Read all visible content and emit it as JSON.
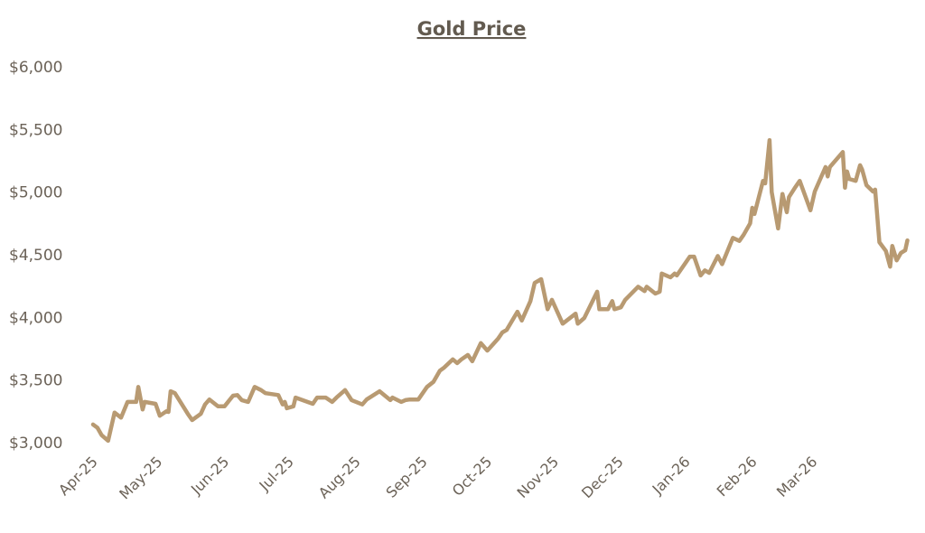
{
  "chart_data": {
    "type": "line",
    "title": "Gold Price",
    "xlabel": "",
    "ylabel": "",
    "ylim": [
      3000,
      6000
    ],
    "grid": false,
    "legend": "none",
    "line_color": "#b89a72",
    "text_color": "#6b6257",
    "y_ticks": [
      {
        "value": 3000,
        "label": "$3,000"
      },
      {
        "value": 3500,
        "label": "$3,500"
      },
      {
        "value": 4000,
        "label": "$4,000"
      },
      {
        "value": 4500,
        "label": "$4,500"
      },
      {
        "value": 5000,
        "label": "$5,000"
      },
      {
        "value": 5500,
        "label": "$5,500"
      },
      {
        "value": 6000,
        "label": "$6,000"
      }
    ],
    "x_ticks": [
      {
        "date": "2025-04-01",
        "label": "Apr-25"
      },
      {
        "date": "2025-05-01",
        "label": "May-25"
      },
      {
        "date": "2025-06-01",
        "label": "Jun-25"
      },
      {
        "date": "2025-07-01",
        "label": "Jul-25"
      },
      {
        "date": "2025-08-01",
        "label": "Aug-25"
      },
      {
        "date": "2025-09-01",
        "label": "Sep-25"
      },
      {
        "date": "2025-10-01",
        "label": "Oct-25"
      },
      {
        "date": "2025-11-01",
        "label": "Nov-25"
      },
      {
        "date": "2025-12-01",
        "label": "Dec-25"
      },
      {
        "date": "2026-01-01",
        "label": "Jan-26"
      },
      {
        "date": "2026-02-01",
        "label": "Feb-26"
      },
      {
        "date": "2026-03-01",
        "label": "Mar-26"
      }
    ],
    "series": [
      {
        "points": [
          [
            "2025-04-01",
            3145
          ],
          [
            "2025-04-03",
            3120
          ],
          [
            "2025-04-05",
            3060
          ],
          [
            "2025-04-08",
            3015
          ],
          [
            "2025-04-11",
            3240
          ],
          [
            "2025-04-14",
            3200
          ],
          [
            "2025-04-17",
            3325
          ],
          [
            "2025-04-21",
            3325
          ],
          [
            "2025-04-22",
            3445
          ],
          [
            "2025-04-24",
            3265
          ],
          [
            "2025-04-25",
            3325
          ],
          [
            "2025-04-30",
            3310
          ],
          [
            "2025-05-02",
            3215
          ],
          [
            "2025-05-05",
            3250
          ],
          [
            "2025-05-06",
            3245
          ],
          [
            "2025-05-07",
            3410
          ],
          [
            "2025-05-09",
            3395
          ],
          [
            "2025-05-15",
            3230
          ],
          [
            "2025-05-17",
            3180
          ],
          [
            "2025-05-21",
            3230
          ],
          [
            "2025-05-23",
            3305
          ],
          [
            "2025-05-25",
            3345
          ],
          [
            "2025-05-29",
            3290
          ],
          [
            "2025-06-01",
            3290
          ],
          [
            "2025-06-05",
            3375
          ],
          [
            "2025-06-07",
            3380
          ],
          [
            "2025-06-09",
            3340
          ],
          [
            "2025-06-12",
            3325
          ],
          [
            "2025-06-15",
            3445
          ],
          [
            "2025-06-18",
            3420
          ],
          [
            "2025-06-20",
            3395
          ],
          [
            "2025-06-26",
            3380
          ],
          [
            "2025-06-28",
            3305
          ],
          [
            "2025-06-29",
            3325
          ],
          [
            "2025-06-30",
            3275
          ],
          [
            "2025-07-03",
            3290
          ],
          [
            "2025-07-04",
            3360
          ],
          [
            "2025-07-12",
            3310
          ],
          [
            "2025-07-14",
            3360
          ],
          [
            "2025-07-18",
            3360
          ],
          [
            "2025-07-21",
            3325
          ],
          [
            "2025-07-23",
            3360
          ],
          [
            "2025-07-27",
            3420
          ],
          [
            "2025-07-30",
            3340
          ],
          [
            "2025-08-04",
            3305
          ],
          [
            "2025-08-06",
            3345
          ],
          [
            "2025-08-12",
            3410
          ],
          [
            "2025-08-17",
            3340
          ],
          [
            "2025-08-18",
            3360
          ],
          [
            "2025-08-22",
            3325
          ],
          [
            "2025-08-24",
            3340
          ],
          [
            "2025-08-26",
            3345
          ],
          [
            "2025-08-30",
            3345
          ],
          [
            "2025-09-03",
            3445
          ],
          [
            "2025-09-06",
            3485
          ],
          [
            "2025-09-09",
            3575
          ],
          [
            "2025-09-11",
            3600
          ],
          [
            "2025-09-15",
            3665
          ],
          [
            "2025-09-17",
            3635
          ],
          [
            "2025-09-19",
            3665
          ],
          [
            "2025-09-22",
            3700
          ],
          [
            "2025-09-24",
            3650
          ],
          [
            "2025-09-28",
            3795
          ],
          [
            "2025-10-01",
            3735
          ],
          [
            "2025-10-06",
            3830
          ],
          [
            "2025-10-08",
            3880
          ],
          [
            "2025-10-10",
            3900
          ],
          [
            "2025-10-15",
            4045
          ],
          [
            "2025-10-17",
            3975
          ],
          [
            "2025-10-21",
            4130
          ],
          [
            "2025-10-23",
            4275
          ],
          [
            "2025-10-26",
            4305
          ],
          [
            "2025-10-29",
            4065
          ],
          [
            "2025-10-31",
            4140
          ],
          [
            "2025-11-05",
            3950
          ],
          [
            "2025-11-11",
            4030
          ],
          [
            "2025-11-12",
            3950
          ],
          [
            "2025-11-15",
            3995
          ],
          [
            "2025-11-21",
            4205
          ],
          [
            "2025-11-22",
            4065
          ],
          [
            "2025-11-26",
            4065
          ],
          [
            "2025-11-28",
            4130
          ],
          [
            "2025-11-29",
            4065
          ],
          [
            "2025-12-02",
            4080
          ],
          [
            "2025-12-04",
            4140
          ],
          [
            "2025-12-10",
            4245
          ],
          [
            "2025-12-13",
            4210
          ],
          [
            "2025-12-14",
            4245
          ],
          [
            "2025-12-18",
            4190
          ],
          [
            "2025-12-20",
            4205
          ],
          [
            "2025-12-21",
            4350
          ],
          [
            "2025-12-25",
            4320
          ],
          [
            "2025-12-27",
            4350
          ],
          [
            "2025-12-28",
            4335
          ],
          [
            "2026-01-03",
            4485
          ],
          [
            "2026-01-05",
            4485
          ],
          [
            "2026-01-08",
            4335
          ],
          [
            "2026-01-10",
            4375
          ],
          [
            "2026-01-12",
            4355
          ],
          [
            "2026-01-16",
            4490
          ],
          [
            "2026-01-18",
            4425
          ],
          [
            "2026-01-23",
            4635
          ],
          [
            "2026-01-26",
            4610
          ],
          [
            "2026-01-28",
            4660
          ],
          [
            "2026-01-31",
            4750
          ],
          [
            "2026-02-01",
            4875
          ],
          [
            "2026-02-02",
            4825
          ],
          [
            "2026-02-06",
            5090
          ],
          [
            "2026-02-07",
            5070
          ],
          [
            "2026-02-09",
            5415
          ],
          [
            "2026-02-10",
            5000
          ],
          [
            "2026-02-13",
            4710
          ],
          [
            "2026-02-15",
            4985
          ],
          [
            "2026-02-17",
            4840
          ],
          [
            "2026-02-18",
            4960
          ],
          [
            "2026-02-21",
            5040
          ],
          [
            "2026-02-23",
            5090
          ],
          [
            "2026-02-28",
            4855
          ],
          [
            "2026-03-02",
            5005
          ],
          [
            "2026-03-07",
            5200
          ],
          [
            "2026-03-08",
            5125
          ],
          [
            "2026-03-09",
            5200
          ],
          [
            "2026-03-15",
            5320
          ],
          [
            "2026-03-16",
            5035
          ],
          [
            "2026-03-17",
            5165
          ],
          [
            "2026-03-18",
            5105
          ],
          [
            "2026-03-21",
            5090
          ],
          [
            "2026-03-23",
            5215
          ],
          [
            "2026-03-24",
            5180
          ],
          [
            "2026-03-26",
            5055
          ],
          [
            "2026-03-29",
            5005
          ],
          [
            "2026-03-30",
            5020
          ],
          [
            "2026-04-01",
            4600
          ],
          [
            "2026-04-04",
            4530
          ],
          [
            "2026-04-06",
            4405
          ],
          [
            "2026-04-07",
            4570
          ],
          [
            "2026-04-09",
            4455
          ],
          [
            "2026-04-11",
            4515
          ],
          [
            "2026-04-13",
            4535
          ],
          [
            "2026-04-14",
            4615
          ]
        ]
      }
    ]
  }
}
